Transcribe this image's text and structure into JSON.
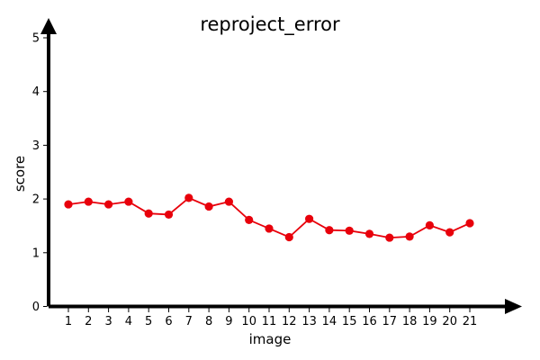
{
  "chart_data": {
    "type": "line",
    "title": "reproject_error",
    "xlabel": "image",
    "ylabel": "score",
    "categories": [
      "1",
      "2",
      "3",
      "4",
      "5",
      "6",
      "7",
      "8",
      "9",
      "10",
      "11",
      "12",
      "13",
      "14",
      "15",
      "16",
      "17",
      "18",
      "19",
      "20",
      "21"
    ],
    "yticks": [
      "0",
      "1",
      "2",
      "3",
      "4",
      "5"
    ],
    "ylim": [
      0,
      5
    ],
    "grid": false,
    "series": [
      {
        "color": "#e8000b",
        "values": [
          1.9,
          1.95,
          1.9,
          1.95,
          1.73,
          1.71,
          2.02,
          1.86,
          1.95,
          1.61,
          1.45,
          1.29,
          1.63,
          1.42,
          1.41,
          1.35,
          1.28,
          1.3,
          1.51,
          1.38,
          1.55
        ]
      }
    ]
  }
}
